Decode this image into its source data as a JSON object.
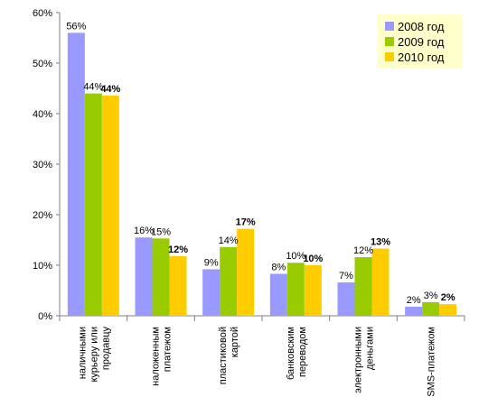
{
  "chart_data": {
    "type": "bar",
    "categories": [
      [
        "наличными",
        "курьеру или",
        "продавцу"
      ],
      [
        "наложенным",
        "платежом"
      ],
      [
        "пластиковой",
        "картой"
      ],
      [
        "банковским",
        "переводом"
      ],
      [
        "электронными",
        "деньгами"
      ],
      [
        "SMS-платежом"
      ]
    ],
    "series": [
      {
        "name": "2008 год",
        "color": "#9999ff",
        "values": [
          56,
          15.5,
          9.2,
          8.3,
          6.6,
          1.8
        ],
        "labels": [
          "56%",
          "16%",
          "9%",
          "8%",
          "7%",
          "2%"
        ]
      },
      {
        "name": "2009 год",
        "color": "#99cc00",
        "values": [
          44,
          15.3,
          13.6,
          10.5,
          11.6,
          2.7
        ],
        "labels": [
          "44%",
          "15%",
          "14%",
          "10%",
          "12%",
          "3%"
        ]
      },
      {
        "name": "2010 год",
        "color": "#ffcc00",
        "values": [
          43.6,
          11.8,
          17.2,
          10.0,
          13.3,
          2.3
        ],
        "labels": [
          "44%",
          "12%",
          "17%",
          "10%",
          "13%",
          "2%"
        ]
      }
    ],
    "ylim": [
      0,
      60
    ],
    "yticks": [
      0,
      10,
      20,
      30,
      40,
      50,
      60
    ],
    "ytick_labels": [
      "0%",
      "10%",
      "20%",
      "30%",
      "40%",
      "50%",
      "60%"
    ],
    "grid": false,
    "legend_position": "top-right",
    "legend_background": "#ffffcc"
  }
}
